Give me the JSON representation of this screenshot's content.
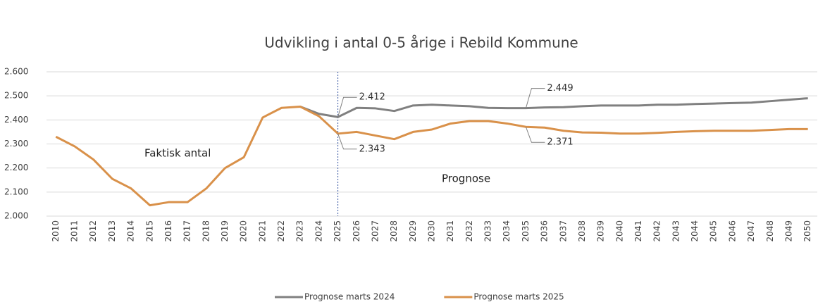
{
  "chart_data": {
    "type": "line",
    "title": "Udvikling i antal 0-5 årige i Rebild Kommune",
    "annotations": [
      "Faktisk antal",
      "Prognose"
    ],
    "categories": [
      "2010",
      "2011",
      "2012",
      "2013",
      "2014",
      "2015",
      "2016",
      "2017",
      "2018",
      "2019",
      "2020",
      "2021",
      "2022",
      "2023",
      "2024",
      "2025",
      "2026",
      "2027",
      "2028",
      "2029",
      "2030",
      "2031",
      "2032",
      "2033",
      "2034",
      "2035",
      "2036",
      "2037",
      "2038",
      "2039",
      "2040",
      "2041",
      "2042",
      "2043",
      "2044",
      "2045",
      "2046",
      "2047",
      "2048",
      "2049",
      "2050"
    ],
    "series": [
      {
        "name": "Prognose marts 2024",
        "color": "#808080",
        "values": [
          null,
          null,
          null,
          null,
          null,
          null,
          null,
          null,
          null,
          null,
          null,
          null,
          null,
          2455,
          2425,
          2412,
          2450,
          2448,
          2437,
          2460,
          2463,
          2460,
          2457,
          2450,
          2449,
          2449,
          2452,
          2453,
          2457,
          2460,
          2460,
          2460,
          2463,
          2463,
          2466,
          2468,
          2470,
          2472,
          2478,
          2484,
          2490
        ],
        "value_labels": [
          null,
          null,
          null,
          null,
          null,
          null,
          null,
          null,
          null,
          null,
          null,
          null,
          null,
          null,
          null,
          "2.412",
          null,
          null,
          null,
          null,
          null,
          null,
          null,
          null,
          null,
          "2.449",
          null,
          null,
          null,
          null,
          null,
          null,
          null,
          null,
          null,
          null,
          null,
          null,
          null,
          null,
          null
        ]
      },
      {
        "name": "Prognose marts 2025",
        "color": "#d9914a",
        "values": [
          2330,
          2290,
          2235,
          2155,
          2115,
          2045,
          2058,
          2058,
          2115,
          2200,
          2245,
          2410,
          2450,
          2455,
          2415,
          2343,
          2350,
          2335,
          2320,
          2350,
          2360,
          2385,
          2395,
          2395,
          2385,
          2371,
          2368,
          2355,
          2348,
          2347,
          2343,
          2343,
          2346,
          2350,
          2353,
          2355,
          2355,
          2355,
          2358,
          2362,
          2362
        ],
        "value_labels": [
          null,
          null,
          null,
          null,
          null,
          null,
          null,
          null,
          null,
          null,
          null,
          null,
          null,
          null,
          null,
          "2.343",
          null,
          null,
          null,
          null,
          null,
          null,
          null,
          null,
          null,
          "2.371",
          null,
          null,
          null,
          null,
          null,
          null,
          null,
          null,
          null,
          null,
          null,
          null,
          null,
          null,
          null
        ]
      }
    ],
    "ylim": [
      2000,
      2600
    ],
    "yticks": [
      {
        "value": 2000,
        "label": "2.000"
      },
      {
        "value": 2100,
        "label": "2.100"
      },
      {
        "value": 2200,
        "label": "2.200"
      },
      {
        "value": 2300,
        "label": "2.300"
      },
      {
        "value": 2400,
        "label": "2.400"
      },
      {
        "value": 2500,
        "label": "2.500"
      },
      {
        "value": 2600,
        "label": "2.600"
      }
    ],
    "grid": true,
    "legend": "bottom"
  }
}
